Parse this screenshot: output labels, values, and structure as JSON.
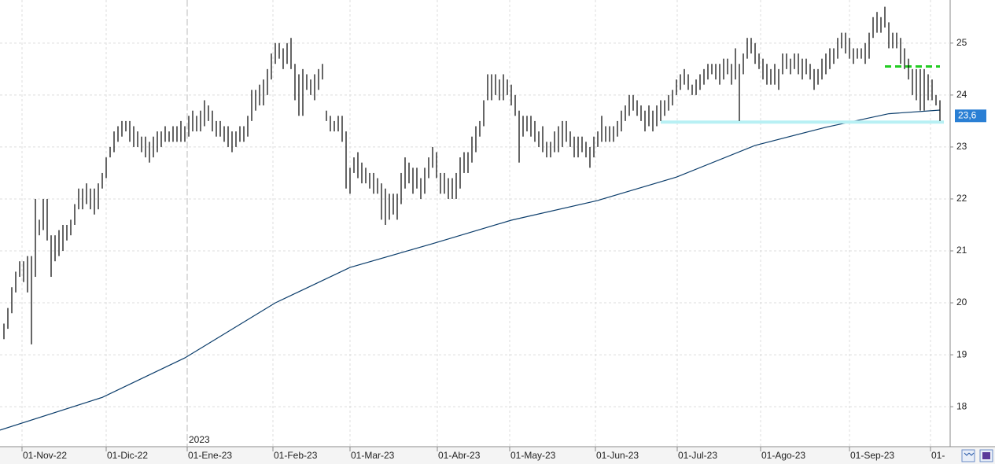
{
  "chart_data": {
    "type": "hilo",
    "color": "#000000",
    "xlim": [
      -1,
      240.6
    ],
    "ylim": [
      17.23,
      25.83
    ],
    "yticks": [
      18,
      19,
      20,
      21,
      22,
      23,
      24,
      25
    ],
    "xticks": [
      {
        "value": 4.6,
        "label": "01-Nov-22"
      },
      {
        "value": 26,
        "label": "01-Dic-22"
      },
      {
        "value": 46.6,
        "label": "01-Ene-23"
      },
      {
        "value": 68.4,
        "label": "01-Feb-23"
      },
      {
        "value": 88,
        "label": "01-Mar-23"
      },
      {
        "value": 110.2,
        "label": "01-Abr-23"
      },
      {
        "value": 128.6,
        "label": "01-May-23"
      },
      {
        "value": 150.4,
        "label": "01-Jun-23"
      },
      {
        "value": 171.2,
        "label": "01-Jul-23"
      },
      {
        "value": 192.4,
        "label": "01-Ago-23"
      },
      {
        "value": 215,
        "label": "01-Sep-23"
      },
      {
        "value": 235.6,
        "label": "01-"
      }
    ],
    "grid": true,
    "year_marker": {
      "value": 46.6,
      "label": "2023"
    },
    "high": [
      19.6,
      19.9,
      20.3,
      20.6,
      20.8,
      20.8,
      20.9,
      20.9,
      22.0,
      21.6,
      22.0,
      22.0,
      21.3,
      21.3,
      21.4,
      21.5,
      21.5,
      21.6,
      21.9,
      22.2,
      22.2,
      22.3,
      22.2,
      22.2,
      22.3,
      22.5,
      22.8,
      23.0,
      23.3,
      23.4,
      23.5,
      23.5,
      23.5,
      23.4,
      23.3,
      23.2,
      23.2,
      23.1,
      23.2,
      23.3,
      23.3,
      23.4,
      23.3,
      23.4,
      23.4,
      23.5,
      23.4,
      23.6,
      23.7,
      23.6,
      23.7,
      23.9,
      23.8,
      23.7,
      23.5,
      23.5,
      23.4,
      23.4,
      23.3,
      23.3,
      23.4,
      23.4,
      23.6,
      24.1,
      24.1,
      24.2,
      24.3,
      24.5,
      24.8,
      25.0,
      25.0,
      24.9,
      25.0,
      25.1,
      24.6,
      24.4,
      24.5,
      24.4,
      24.3,
      24.4,
      24.5,
      24.6,
      23.7,
      23.6,
      23.5,
      23.6,
      23.6,
      23.3,
      22.6,
      22.8,
      22.9,
      22.7,
      22.6,
      22.5,
      22.5,
      22.4,
      22.3,
      22.2,
      22.1,
      22.1,
      22.1,
      22.5,
      22.8,
      22.7,
      22.6,
      22.6,
      22.4,
      22.6,
      22.8,
      23.0,
      22.9,
      22.5,
      22.5,
      22.4,
      22.4,
      22.5,
      22.8,
      22.9,
      22.9,
      23.2,
      23.4,
      23.5,
      23.9,
      24.4,
      24.4,
      24.4,
      24.3,
      24.4,
      24.3,
      24.2,
      24.0,
      23.7,
      23.6,
      23.6,
      23.6,
      23.5,
      23.3,
      23.4,
      23.1,
      23.1,
      23.3,
      23.4,
      23.5,
      23.5,
      23.3,
      23.2,
      23.2,
      23.2,
      23.1,
      23.0,
      23.2,
      23.3,
      23.6,
      23.4,
      23.4,
      23.4,
      23.5,
      23.7,
      23.8,
      24.0,
      24.0,
      23.9,
      23.8,
      23.7,
      23.8,
      23.7,
      23.8,
      23.9,
      23.9,
      24.0,
      24.1,
      24.3,
      24.4,
      24.5,
      24.4,
      24.2,
      24.3,
      24.4,
      24.5,
      24.6,
      24.6,
      24.6,
      24.6,
      24.7,
      24.7,
      24.6,
      24.9,
      24.6,
      24.8,
      25.1,
      25.1,
      25.0,
      24.8,
      24.7,
      24.6,
      24.5,
      24.6,
      24.5,
      24.8,
      24.8,
      24.7,
      24.8,
      24.8,
      24.7,
      24.7,
      24.6,
      24.5,
      24.5,
      24.7,
      24.8,
      24.9,
      24.9,
      25.1,
      25.2,
      25.2,
      25.1,
      24.9,
      24.9,
      24.9,
      25.0,
      25.2,
      25.5,
      25.6,
      25.5,
      25.7,
      25.4,
      25.2,
      25.2,
      25.1,
      24.9,
      24.7,
      24.5,
      24.5,
      24.5,
      24.5,
      24.4,
      24.3,
      24.0,
      23.9
    ],
    "low": [
      19.3,
      19.5,
      19.8,
      20.2,
      20.5,
      20.4,
      20.2,
      19.2,
      20.5,
      21.3,
      21.4,
      21.2,
      20.5,
      20.8,
      20.9,
      21.0,
      21.2,
      21.3,
      21.5,
      21.8,
      21.8,
      21.9,
      21.8,
      21.7,
      21.8,
      22.2,
      22.4,
      22.8,
      22.9,
      23.1,
      23.2,
      23.3,
      23.1,
      23.0,
      23.0,
      22.9,
      22.8,
      22.7,
      22.8,
      22.9,
      23.0,
      23.1,
      23.1,
      23.1,
      23.1,
      23.1,
      23.1,
      23.2,
      23.3,
      23.3,
      23.3,
      23.4,
      23.5,
      23.3,
      23.2,
      23.2,
      23.1,
      23.0,
      22.9,
      23.0,
      23.1,
      23.1,
      23.2,
      23.5,
      23.7,
      23.8,
      23.8,
      24.0,
      24.3,
      24.6,
      24.7,
      24.5,
      24.6,
      24.5,
      23.9,
      23.6,
      23.6,
      24.1,
      24.0,
      23.9,
      24.1,
      24.3,
      23.5,
      23.3,
      23.3,
      23.3,
      23.1,
      22.2,
      22.1,
      22.5,
      22.4,
      22.3,
      22.3,
      22.2,
      22.1,
      22.1,
      21.6,
      21.5,
      21.6,
      21.7,
      21.6,
      21.9,
      22.2,
      22.3,
      22.1,
      22.2,
      22.0,
      22.1,
      22.4,
      22.6,
      22.4,
      22.1,
      22.1,
      22.0,
      22.0,
      22.0,
      22.2,
      22.5,
      22.5,
      22.7,
      22.9,
      23.2,
      23.4,
      23.9,
      23.9,
      24.0,
      23.9,
      23.9,
      24.0,
      23.8,
      23.6,
      22.7,
      23.2,
      23.3,
      23.2,
      23.1,
      23.0,
      22.9,
      22.8,
      22.8,
      22.9,
      22.9,
      23.0,
      23.1,
      23.0,
      22.8,
      22.8,
      22.9,
      22.8,
      22.6,
      22.8,
      23.0,
      23.1,
      23.1,
      23.1,
      23.1,
      23.2,
      23.3,
      23.5,
      23.6,
      23.7,
      23.6,
      23.5,
      23.3,
      23.4,
      23.3,
      23.4,
      23.5,
      23.6,
      23.7,
      23.8,
      24.0,
      24.1,
      24.2,
      24.1,
      24.0,
      24.0,
      24.1,
      24.2,
      24.3,
      24.4,
      24.3,
      24.2,
      24.3,
      24.4,
      24.2,
      24.3,
      23.5,
      24.4,
      24.7,
      24.8,
      24.6,
      24.5,
      24.3,
      24.2,
      24.2,
      24.2,
      24.1,
      24.4,
      24.5,
      24.4,
      24.5,
      24.4,
      24.3,
      24.4,
      24.3,
      24.1,
      24.2,
      24.3,
      24.4,
      24.5,
      24.6,
      24.7,
      24.9,
      24.8,
      24.7,
      24.6,
      24.7,
      24.7,
      24.6,
      24.7,
      25.1,
      25.2,
      25.2,
      25.3,
      24.9,
      24.9,
      24.9,
      24.6,
      24.5,
      24.3,
      24.0,
      23.9,
      23.7,
      23.7,
      23.9,
      23.9,
      23.8,
      23.5
    ],
    "overlay": {
      "color": "#0b3d6b",
      "x": [
        -1,
        25,
        46,
        69,
        88,
        109,
        129,
        151,
        171,
        191,
        209,
        225,
        238
      ],
      "values": [
        17.55,
        18.18,
        18.94,
        20.0,
        20.68,
        21.14,
        21.59,
        21.97,
        22.42,
        23.03,
        23.38,
        23.64,
        23.71
      ]
    },
    "levels": [
      {
        "value": 24.55,
        "from": 224,
        "to": 238,
        "color": "#22cc22",
        "dashed": true
      },
      {
        "value": 23.48,
        "from": 167,
        "to": 239,
        "color": "#b8f0f4",
        "dashed": false
      }
    ],
    "last_price": {
      "value": 23.6,
      "label": "23,6",
      "color": "#2a7fd4"
    }
  }
}
